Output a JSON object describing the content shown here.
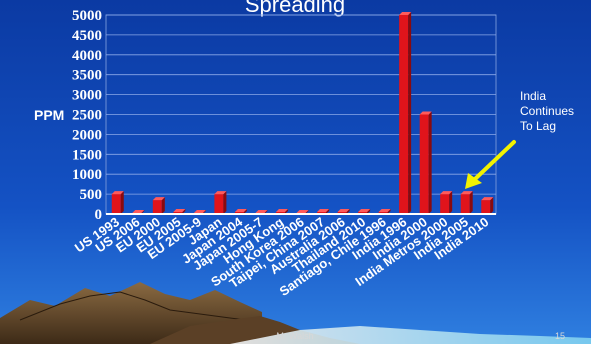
{
  "slide": {
    "title": "Spreading",
    "annotation_lines": [
      "India",
      "Continues",
      "To Lag"
    ],
    "author": "M. Walsh",
    "page_number": "15"
  },
  "colors": {
    "background_top": "#0b3aa3",
    "background_bottom": "#2f7fe0",
    "bar_fill": "#e0141b",
    "bar_side": "#8a0a0d",
    "arrow": "#f2f200"
  },
  "chart_data": {
    "type": "bar",
    "ylabel": "PPM",
    "xlabel": "",
    "ylim": [
      0,
      5000
    ],
    "yticks": [
      0,
      500,
      1000,
      1500,
      2000,
      2500,
      3000,
      3500,
      4000,
      4500,
      5000
    ],
    "grid": true,
    "categories": [
      "US 1993",
      "US 2006",
      "EU 2000",
      "EU 2005",
      "EU 2005-9",
      "Japan",
      "Japan 2004",
      "Japan 2005-7",
      "Hong Kong",
      "South Korea 2006",
      "Taipei, China 2007",
      "Australia 2006",
      "Thailand 2010",
      "Santiago, Chile 1996",
      "India 1996",
      "India 2000",
      "India Metros 2000",
      "India 2005",
      "India 2010"
    ],
    "values": [
      500,
      15,
      350,
      50,
      15,
      500,
      50,
      15,
      50,
      15,
      50,
      50,
      50,
      50,
      5000,
      2500,
      500,
      500,
      350
    ]
  }
}
